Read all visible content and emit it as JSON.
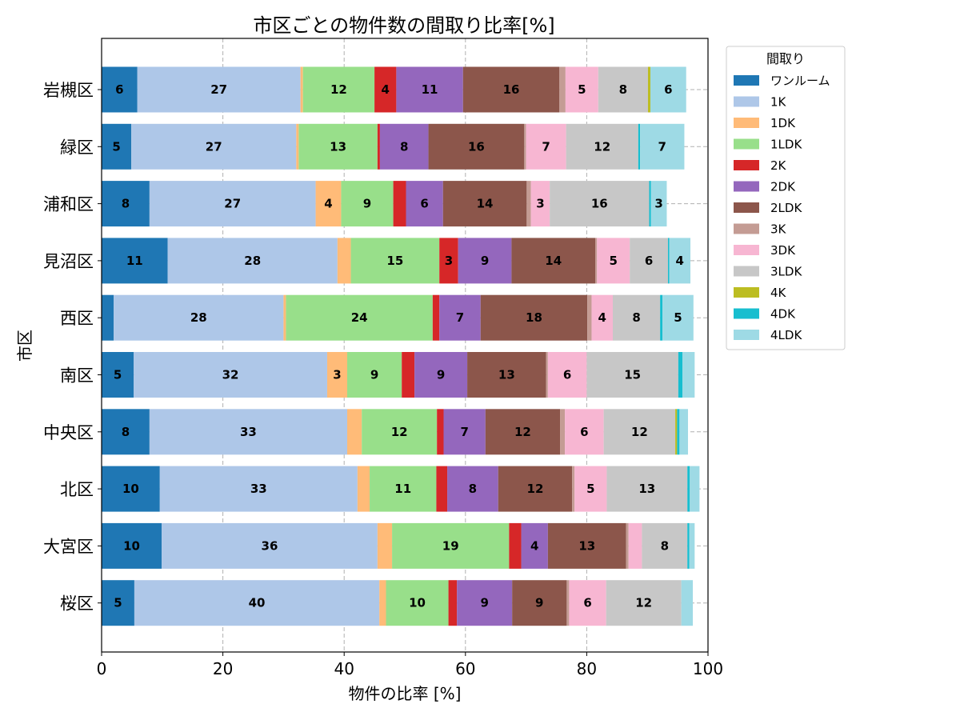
{
  "chart_data": {
    "type": "bar",
    "orientation": "horizontal",
    "stacked": true,
    "title": "市区ごとの物件数の間取り比率[%]",
    "xlabel": "物件の比率 [%]",
    "ylabel": "市区",
    "xlim": [
      0,
      100
    ],
    "xticks": [
      "0",
      "20",
      "40",
      "60",
      "80",
      "100"
    ],
    "grid": true,
    "legend_position": "outside-right-top",
    "legend_title": "間取り",
    "categories": [
      "岩槻区",
      "緑区",
      "浦和区",
      "見沼区",
      "西区",
      "南区",
      "中央区",
      "北区",
      "大宮区",
      "桜区"
    ],
    "series": [
      {
        "name": "ワンルーム",
        "color": "#1f77b4",
        "values": [
          5.9,
          4.9,
          7.9,
          10.9,
          2.0,
          5.3,
          7.9,
          9.6,
          9.9,
          5.4
        ]
      },
      {
        "name": "1K",
        "color": "#aec7e8",
        "values": [
          26.9,
          27.2,
          27.4,
          28.0,
          28.0,
          31.9,
          32.6,
          32.6,
          35.6,
          40.4
        ]
      },
      {
        "name": "1DK",
        "color": "#ffbb78",
        "values": [
          0.4,
          0.4,
          4.2,
          2.2,
          0.4,
          3.3,
          2.4,
          2.0,
          2.4,
          1.1
        ]
      },
      {
        "name": "1LDK",
        "color": "#98df8a",
        "values": [
          11.8,
          13.0,
          8.6,
          14.6,
          24.2,
          9.0,
          12.4,
          11.0,
          19.3,
          10.3
        ]
      },
      {
        "name": "2K",
        "color": "#d62728",
        "values": [
          3.6,
          0.4,
          2.1,
          3.1,
          1.1,
          2.1,
          1.1,
          1.8,
          2.0,
          1.4
        ]
      },
      {
        "name": "2DK",
        "color": "#9467bd",
        "values": [
          11.0,
          8.0,
          6.1,
          8.8,
          6.8,
          8.7,
          6.9,
          8.4,
          4.4,
          9.1
        ]
      },
      {
        "name": "2LDK",
        "color": "#8c564b",
        "values": [
          15.9,
          15.8,
          13.8,
          13.8,
          17.6,
          13.0,
          12.3,
          12.2,
          12.9,
          9.0
        ]
      },
      {
        "name": "3K",
        "color": "#c49c94",
        "values": [
          1.0,
          0.3,
          0.7,
          0.3,
          0.7,
          0.3,
          0.8,
          0.4,
          0.4,
          0.4
        ]
      },
      {
        "name": "3DK",
        "color": "#f7b6d2",
        "values": [
          5.4,
          6.6,
          3.1,
          5.4,
          3.5,
          6.4,
          6.4,
          5.3,
          2.2,
          6.1
        ]
      },
      {
        "name": "3LDK",
        "color": "#c7c7c7",
        "values": [
          8.2,
          11.9,
          16.4,
          6.3,
          7.8,
          15.1,
          11.8,
          13.3,
          7.5,
          12.4
        ]
      },
      {
        "name": "4K",
        "color": "#bcbd22",
        "values": [
          0.4,
          0.0,
          0.0,
          0.0,
          0.0,
          0.0,
          0.3,
          0.0,
          0.0,
          0.0
        ]
      },
      {
        "name": "4DK",
        "color": "#17becf",
        "values": [
          0.0,
          0.3,
          0.3,
          0.2,
          0.4,
          0.7,
          0.4,
          0.4,
          0.3,
          0.0
        ]
      },
      {
        "name": "4LDK",
        "color": "#9edae5",
        "values": [
          5.9,
          7.3,
          2.6,
          3.5,
          5.1,
          2.0,
          1.4,
          1.6,
          0.9,
          1.9
        ]
      }
    ]
  }
}
